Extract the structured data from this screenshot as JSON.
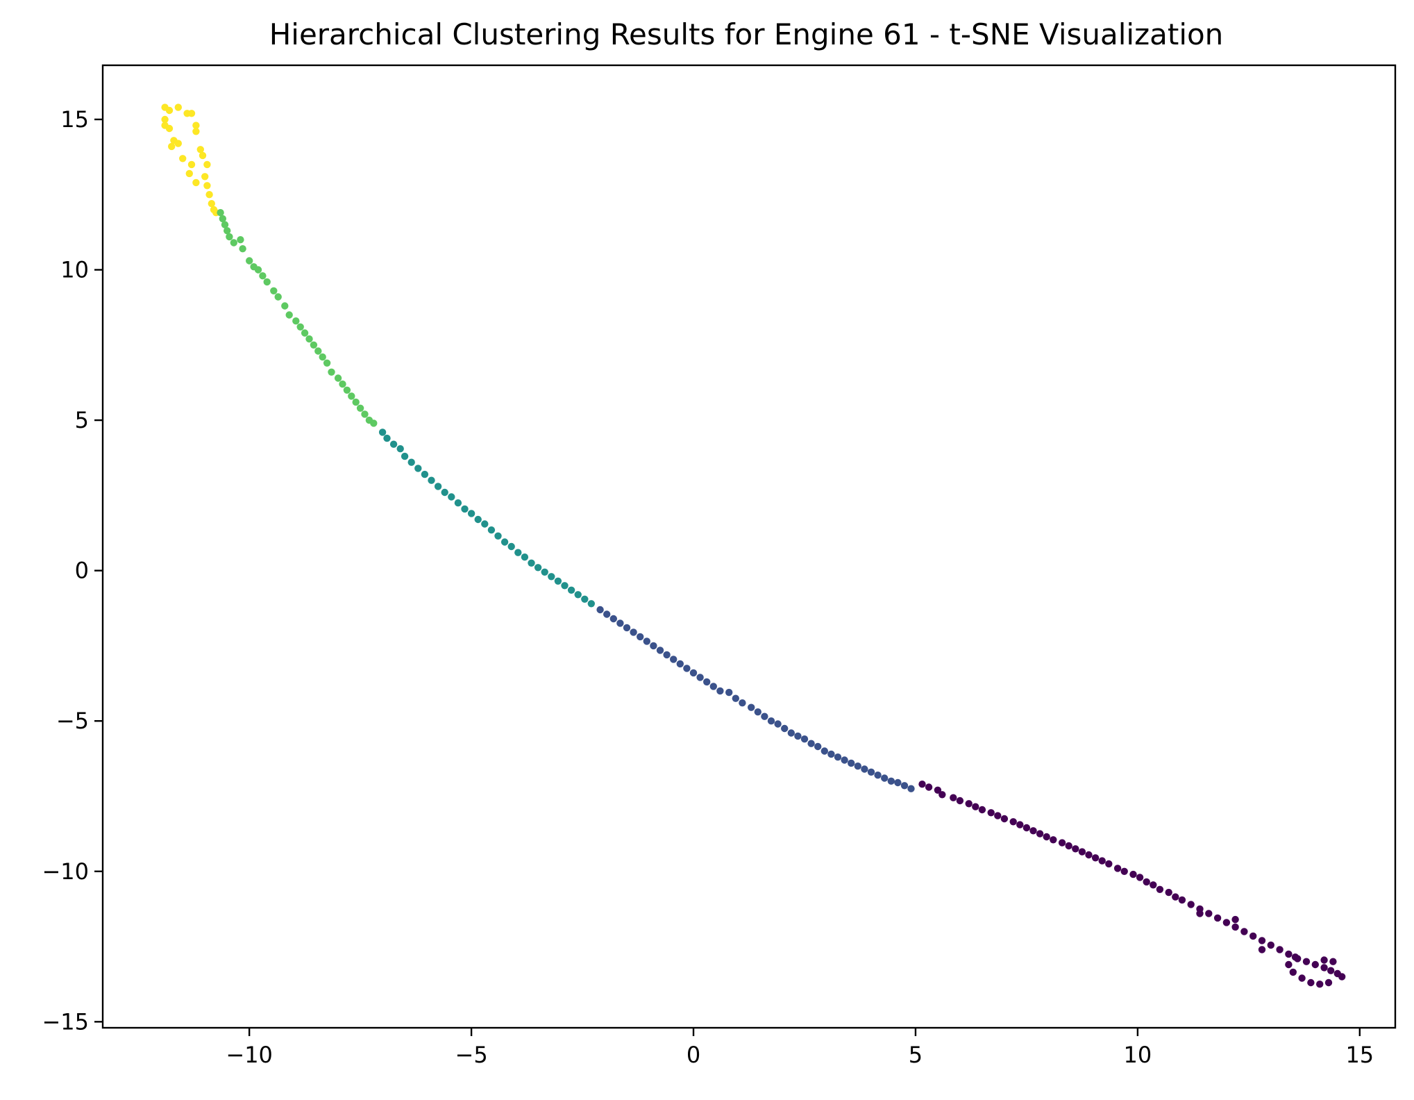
{
  "chart_data": {
    "type": "scatter",
    "title": "Hierarchical Clustering Results for Engine 61 - t-SNE Visualization",
    "xlabel": "",
    "ylabel": "",
    "xlim": [
      -13.3,
      15.8
    ],
    "ylim": [
      -15.2,
      16.8
    ],
    "grid": false,
    "legend": "none",
    "x_ticks": [
      {
        "value": -10,
        "label": "−10"
      },
      {
        "value": -5,
        "label": "−5"
      },
      {
        "value": 0,
        "label": "0"
      },
      {
        "value": 5,
        "label": "5"
      },
      {
        "value": 10,
        "label": "10"
      },
      {
        "value": 15,
        "label": "15"
      }
    ],
    "y_ticks": [
      {
        "value": 15,
        "label": "15"
      },
      {
        "value": 10,
        "label": "10"
      },
      {
        "value": 5,
        "label": "5"
      },
      {
        "value": 0,
        "label": "0"
      },
      {
        "value": -5,
        "label": "−5"
      },
      {
        "value": -10,
        "label": "−10"
      },
      {
        "value": -15,
        "label": "−15"
      }
    ],
    "clusters": [
      {
        "color": "#fde725",
        "points": [
          [
            -11.9,
            15.4
          ],
          [
            -11.8,
            15.3
          ],
          [
            -11.6,
            15.4
          ],
          [
            -11.4,
            15.2
          ],
          [
            -11.3,
            15.2
          ],
          [
            -11.2,
            14.8
          ],
          [
            -11.2,
            14.6
          ],
          [
            -11.9,
            15.0
          ],
          [
            -11.9,
            14.8
          ],
          [
            -11.8,
            14.7
          ],
          [
            -11.7,
            14.3
          ],
          [
            -11.75,
            14.1
          ],
          [
            -11.6,
            14.2
          ],
          [
            -11.5,
            13.7
          ],
          [
            -11.3,
            13.5
          ],
          [
            -11.35,
            13.2
          ],
          [
            -11.2,
            12.9
          ],
          [
            -11.1,
            14.0
          ],
          [
            -11.05,
            13.8
          ],
          [
            -10.95,
            13.5
          ],
          [
            -11.0,
            13.1
          ],
          [
            -10.95,
            12.8
          ],
          [
            -10.9,
            12.5
          ],
          [
            -10.85,
            12.2
          ],
          [
            -10.8,
            12.0
          ],
          [
            -10.75,
            11.9
          ]
        ]
      },
      {
        "color": "#5ec962",
        "points": [
          [
            -10.65,
            11.9
          ],
          [
            -10.6,
            11.7
          ],
          [
            -10.55,
            11.5
          ],
          [
            -10.5,
            11.3
          ],
          [
            -10.45,
            11.1
          ],
          [
            -10.35,
            10.9
          ],
          [
            -10.2,
            11.0
          ],
          [
            -10.15,
            10.7
          ],
          [
            -10.0,
            10.3
          ],
          [
            -9.9,
            10.1
          ],
          [
            -9.8,
            10.0
          ],
          [
            -9.7,
            9.8
          ],
          [
            -9.6,
            9.6
          ],
          [
            -9.45,
            9.3
          ],
          [
            -9.35,
            9.1
          ],
          [
            -9.2,
            8.8
          ],
          [
            -9.1,
            8.5
          ],
          [
            -8.95,
            8.3
          ],
          [
            -8.85,
            8.1
          ],
          [
            -8.75,
            7.9
          ],
          [
            -8.65,
            7.7
          ],
          [
            -8.55,
            7.5
          ],
          [
            -8.45,
            7.3
          ],
          [
            -8.35,
            7.1
          ],
          [
            -8.25,
            6.9
          ],
          [
            -8.15,
            6.6
          ],
          [
            -8.0,
            6.4
          ],
          [
            -7.9,
            6.2
          ],
          [
            -7.8,
            6.0
          ],
          [
            -7.7,
            5.8
          ],
          [
            -7.6,
            5.6
          ],
          [
            -7.5,
            5.4
          ],
          [
            -7.4,
            5.2
          ],
          [
            -7.3,
            5.0
          ],
          [
            -7.2,
            4.9
          ]
        ]
      },
      {
        "color": "#21918c",
        "points": [
          [
            -7.0,
            4.6
          ],
          [
            -6.9,
            4.4
          ],
          [
            -6.75,
            4.2
          ],
          [
            -6.6,
            4.05
          ],
          [
            -6.5,
            3.8
          ],
          [
            -6.35,
            3.6
          ],
          [
            -6.2,
            3.4
          ],
          [
            -6.05,
            3.2
          ],
          [
            -5.9,
            3.0
          ],
          [
            -5.75,
            2.8
          ],
          [
            -5.6,
            2.6
          ],
          [
            -5.45,
            2.45
          ],
          [
            -5.3,
            2.25
          ],
          [
            -5.15,
            2.05
          ],
          [
            -5.0,
            1.9
          ],
          [
            -4.85,
            1.7
          ],
          [
            -4.7,
            1.55
          ],
          [
            -4.55,
            1.35
          ],
          [
            -4.4,
            1.15
          ],
          [
            -4.25,
            0.95
          ],
          [
            -4.1,
            0.8
          ],
          [
            -3.95,
            0.6
          ],
          [
            -3.8,
            0.45
          ],
          [
            -3.65,
            0.25
          ],
          [
            -3.5,
            0.1
          ],
          [
            -3.35,
            -0.05
          ],
          [
            -3.2,
            -0.2
          ],
          [
            -3.05,
            -0.35
          ],
          [
            -2.9,
            -0.5
          ],
          [
            -2.75,
            -0.65
          ],
          [
            -2.6,
            -0.8
          ],
          [
            -2.45,
            -0.95
          ],
          [
            -2.3,
            -1.1
          ]
        ]
      },
      {
        "color": "#3b528b",
        "points": [
          [
            -2.1,
            -1.3
          ],
          [
            -1.95,
            -1.45
          ],
          [
            -1.8,
            -1.6
          ],
          [
            -1.65,
            -1.75
          ],
          [
            -1.5,
            -1.9
          ],
          [
            -1.35,
            -2.05
          ],
          [
            -1.2,
            -2.2
          ],
          [
            -1.05,
            -2.35
          ],
          [
            -0.9,
            -2.5
          ],
          [
            -0.75,
            -2.65
          ],
          [
            -0.6,
            -2.8
          ],
          [
            -0.45,
            -2.95
          ],
          [
            -0.3,
            -3.1
          ],
          [
            -0.15,
            -3.25
          ],
          [
            0.0,
            -3.4
          ],
          [
            0.15,
            -3.55
          ],
          [
            0.3,
            -3.7
          ],
          [
            0.45,
            -3.85
          ],
          [
            0.6,
            -4.0
          ],
          [
            0.8,
            -4.05
          ],
          [
            0.95,
            -4.25
          ],
          [
            1.1,
            -4.4
          ],
          [
            1.3,
            -4.55
          ],
          [
            1.45,
            -4.7
          ],
          [
            1.6,
            -4.85
          ],
          [
            1.75,
            -5.0
          ],
          [
            1.9,
            -5.1
          ],
          [
            2.05,
            -5.25
          ],
          [
            2.2,
            -5.4
          ],
          [
            2.35,
            -5.5
          ],
          [
            2.5,
            -5.6
          ],
          [
            2.65,
            -5.75
          ],
          [
            2.8,
            -5.85
          ],
          [
            2.95,
            -6.0
          ],
          [
            3.1,
            -6.1
          ],
          [
            3.25,
            -6.2
          ],
          [
            3.4,
            -6.3
          ],
          [
            3.55,
            -6.4
          ],
          [
            3.7,
            -6.5
          ],
          [
            3.85,
            -6.6
          ],
          [
            4.0,
            -6.7
          ],
          [
            4.15,
            -6.8
          ],
          [
            4.3,
            -6.9
          ],
          [
            4.45,
            -7.0
          ],
          [
            4.6,
            -7.05
          ],
          [
            4.75,
            -7.15
          ],
          [
            4.9,
            -7.25
          ]
        ]
      },
      {
        "color": "#440154",
        "points": [
          [
            5.15,
            -7.1
          ],
          [
            5.3,
            -7.2
          ],
          [
            5.5,
            -7.3
          ],
          [
            5.6,
            -7.45
          ],
          [
            5.85,
            -7.55
          ],
          [
            6.0,
            -7.65
          ],
          [
            6.2,
            -7.75
          ],
          [
            6.35,
            -7.85
          ],
          [
            6.5,
            -7.95
          ],
          [
            6.7,
            -8.05
          ],
          [
            6.85,
            -8.15
          ],
          [
            7.0,
            -8.25
          ],
          [
            7.2,
            -8.35
          ],
          [
            7.35,
            -8.45
          ],
          [
            7.5,
            -8.55
          ],
          [
            7.65,
            -8.65
          ],
          [
            7.8,
            -8.75
          ],
          [
            7.95,
            -8.85
          ],
          [
            8.1,
            -8.95
          ],
          [
            8.3,
            -9.05
          ],
          [
            8.45,
            -9.15
          ],
          [
            8.6,
            -9.25
          ],
          [
            8.75,
            -9.35
          ],
          [
            8.9,
            -9.45
          ],
          [
            9.05,
            -9.55
          ],
          [
            9.2,
            -9.65
          ],
          [
            9.35,
            -9.75
          ],
          [
            9.55,
            -9.9
          ],
          [
            9.7,
            -10.0
          ],
          [
            9.9,
            -10.1
          ],
          [
            10.05,
            -10.2
          ],
          [
            10.2,
            -10.35
          ],
          [
            10.35,
            -10.45
          ],
          [
            10.5,
            -10.6
          ],
          [
            10.7,
            -10.7
          ],
          [
            10.85,
            -10.85
          ],
          [
            11.0,
            -10.95
          ],
          [
            11.2,
            -11.1
          ],
          [
            11.4,
            -11.25
          ],
          [
            11.6,
            -11.4
          ],
          [
            11.8,
            -11.55
          ],
          [
            12.0,
            -11.7
          ],
          [
            12.2,
            -11.85
          ],
          [
            12.4,
            -12.0
          ],
          [
            12.6,
            -12.15
          ],
          [
            12.8,
            -12.3
          ],
          [
            13.0,
            -12.45
          ],
          [
            13.2,
            -12.6
          ],
          [
            13.4,
            -12.75
          ],
          [
            13.6,
            -12.9
          ],
          [
            13.8,
            -13.0
          ],
          [
            14.0,
            -13.1
          ],
          [
            14.2,
            -13.2
          ],
          [
            14.35,
            -13.3
          ],
          [
            14.5,
            -13.4
          ],
          [
            14.6,
            -13.5
          ],
          [
            14.3,
            -13.7
          ],
          [
            14.1,
            -13.75
          ],
          [
            13.9,
            -13.7
          ],
          [
            13.7,
            -13.55
          ],
          [
            13.5,
            -13.35
          ],
          [
            13.4,
            -13.1
          ],
          [
            13.55,
            -12.85
          ],
          [
            11.4,
            -11.4
          ],
          [
            12.2,
            -11.6
          ],
          [
            12.8,
            -12.6
          ],
          [
            14.2,
            -12.95
          ],
          [
            14.4,
            -13.0
          ]
        ]
      }
    ]
  }
}
